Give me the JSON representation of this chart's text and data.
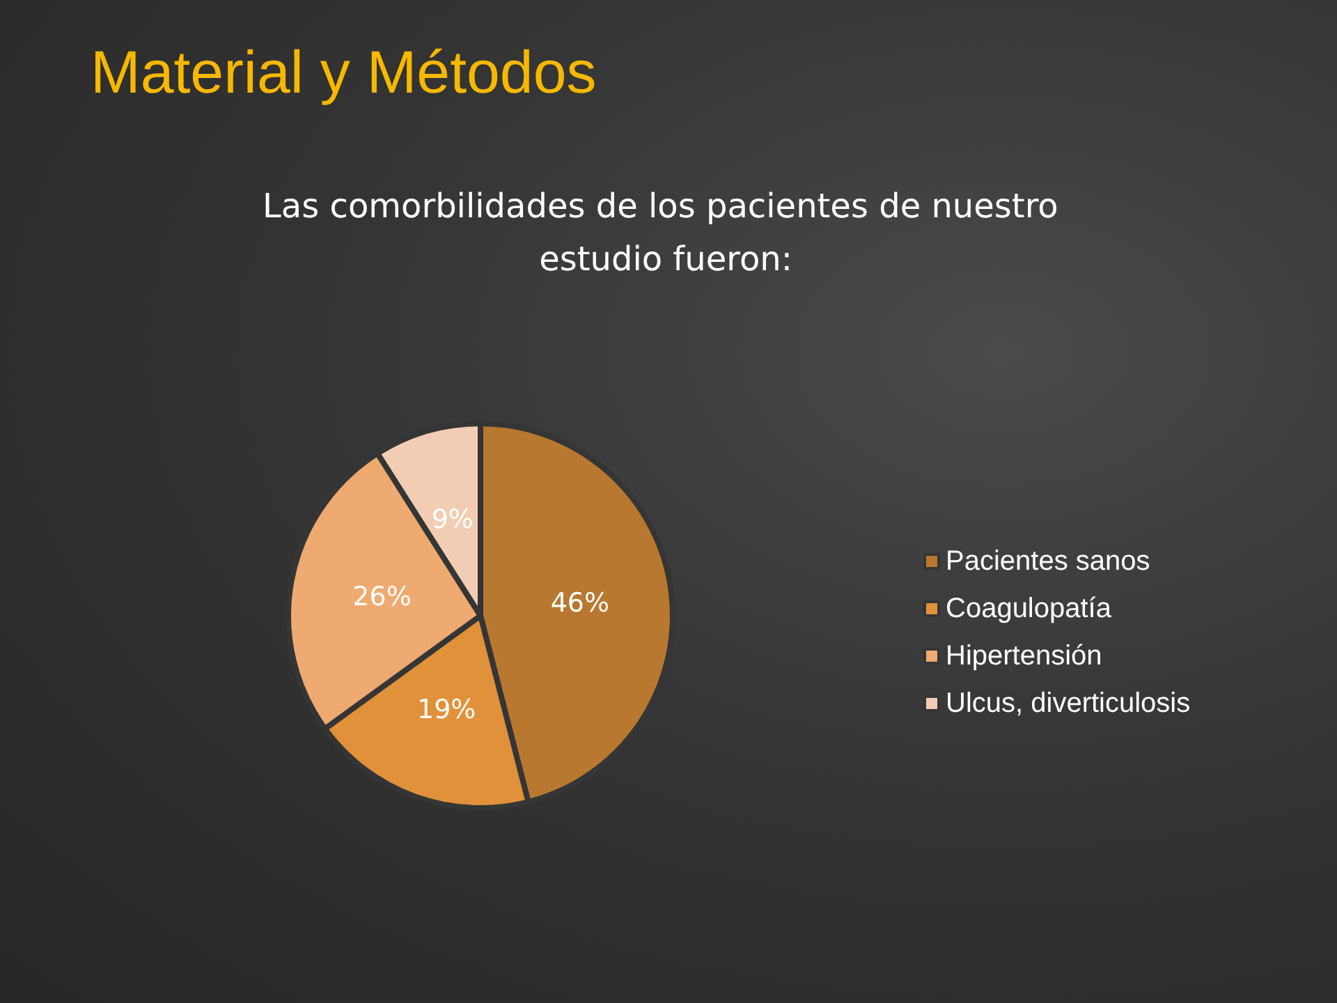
{
  "chart_data": {
    "type": "pie",
    "title": "Material y Métodos",
    "subtitle": "Las comorbilidades de los pacientes de nuestro estudio fueron:",
    "categories": [
      "Pacientes sanos",
      "Coagulopatía",
      "Hipertensión",
      "Ulcus, diverticulosis"
    ],
    "values": [
      46,
      19,
      26,
      9
    ],
    "value_labels": [
      "46%",
      "19%",
      "26%",
      "9%"
    ],
    "colors": [
      "#b8782f",
      "#e0913a",
      "#eeaa70",
      "#f3cdb3"
    ],
    "legend": "right"
  }
}
